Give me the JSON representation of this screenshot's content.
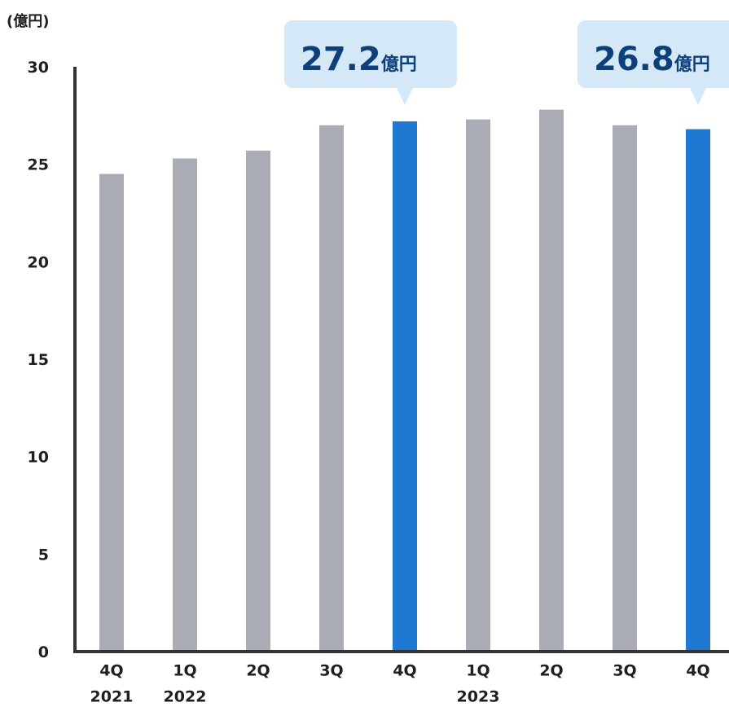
{
  "chart_data": {
    "type": "bar",
    "unit_label": "(億円)",
    "categories": [
      "4Q",
      "1Q",
      "2Q",
      "3Q",
      "4Q",
      "1Q",
      "2Q",
      "3Q",
      "4Q"
    ],
    "year_labels": [
      "2021",
      "2022",
      "",
      "",
      "",
      "2023",
      "",
      "",
      ""
    ],
    "values": [
      24.5,
      25.3,
      25.7,
      27.0,
      27.2,
      27.3,
      27.8,
      27.0,
      26.8
    ],
    "highlighted": [
      false,
      false,
      false,
      false,
      true,
      false,
      false,
      false,
      true
    ],
    "yticks": [
      0,
      5,
      10,
      15,
      20,
      25,
      30
    ],
    "ylim": [
      0,
      30
    ],
    "colors": {
      "bar": "#a9acb4",
      "highlight": "#1f78d1",
      "axis": "#333333",
      "callout_bg": "#d4e8f8",
      "callout_text": "#0d3f7a"
    },
    "callouts": [
      {
        "index": 4,
        "value": "27.2",
        "unit": "億円"
      },
      {
        "index": 8,
        "value": "26.8",
        "unit": "億円"
      }
    ]
  }
}
